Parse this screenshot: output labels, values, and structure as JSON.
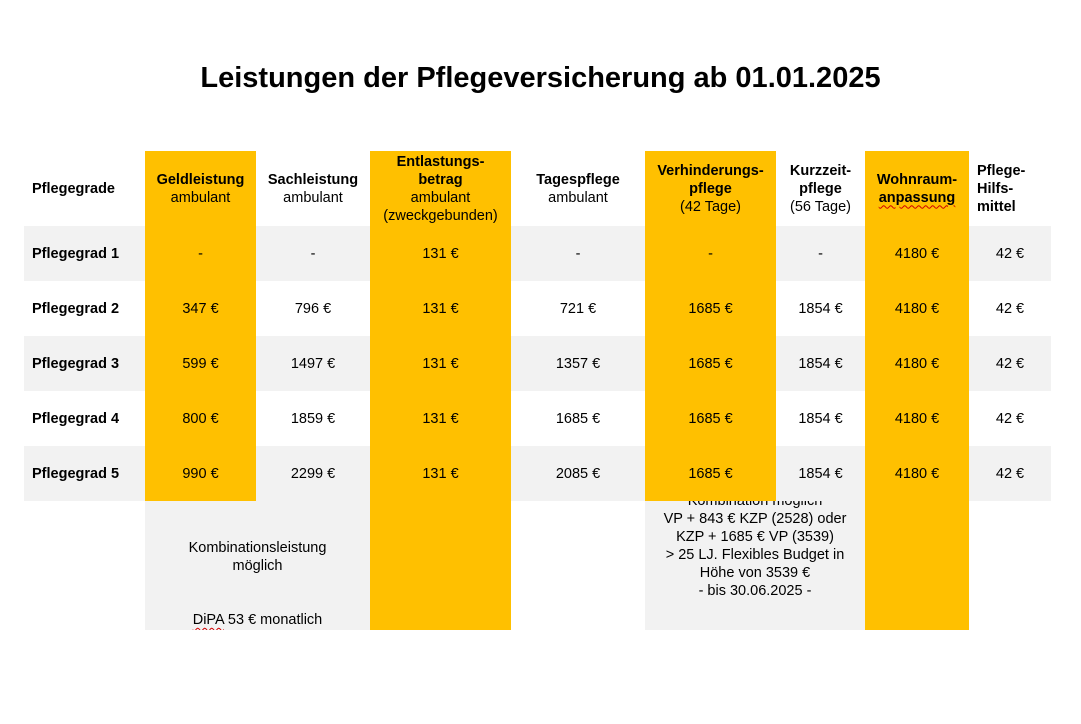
{
  "title": "Leistungen der Pflegeversicherung ab 01.01.2025",
  "headers": {
    "grade": "Pflegegrade",
    "geld": {
      "bold": "Geldleistung",
      "sub": "ambulant"
    },
    "sach": {
      "bold": "Sachleistung",
      "sub": "ambulant"
    },
    "entlastung": {
      "bold1": "Entlastungs-",
      "bold2": "betrag",
      "sub1": "ambulant",
      "sub2": "(zweckgebunden)"
    },
    "tages": {
      "bold": "Tagespflege",
      "sub": "ambulant"
    },
    "verhinderung": {
      "bold1": "Verhinderungs-",
      "bold2": "pflege",
      "sub": "(42 Tage)"
    },
    "kurzzeit": {
      "bold1": "Kurzzeit-",
      "bold2": "pflege",
      "sub": "(56 Tage)"
    },
    "wohnraum": {
      "bold1": "Wohnraum-",
      "bold2": "anpassung"
    },
    "hilfsmittel": {
      "bold1": "Pflege-",
      "bold2": "Hilfs-",
      "bold3": "mittel"
    }
  },
  "rows": [
    {
      "grade": "Pflegegrad 1",
      "geld": "-",
      "sach": "-",
      "entlastung": "131 €",
      "tages": "-",
      "verhinderung": "-",
      "kurzzeit": "-",
      "wohnraum": "4180 €",
      "hilfsmittel": "42 €"
    },
    {
      "grade": "Pflegegrad 2",
      "geld": "347 €",
      "sach": "796 €",
      "entlastung": "131 €",
      "tages": "721 €",
      "verhinderung": "1685 €",
      "kurzzeit": "1854 €",
      "wohnraum": "4180 €",
      "hilfsmittel": "42 €"
    },
    {
      "grade": "Pflegegrad 3",
      "geld": "599 €",
      "sach": "1497 €",
      "entlastung": "131 €",
      "tages": "1357 €",
      "verhinderung": "1685 €",
      "kurzzeit": "1854 €",
      "wohnraum": "4180 €",
      "hilfsmittel": "42 €"
    },
    {
      "grade": "Pflegegrad 4",
      "geld": "800 €",
      "sach": "1859 €",
      "entlastung": "131 €",
      "tages": "1685 €",
      "verhinderung": "1685 €",
      "kurzzeit": "1854 €",
      "wohnraum": "4180 €",
      "hilfsmittel": "42 €"
    },
    {
      "grade": "Pflegegrad 5",
      "geld": "990 €",
      "sach": "2299 €",
      "entlastung": "131 €",
      "tages": "2085 €",
      "verhinderung": "1685 €",
      "kurzzeit": "1854 €",
      "wohnraum": "4180 €",
      "hilfsmittel": "42 €"
    }
  ],
  "footer": {
    "combo_left_1": "Kombinationsleistung",
    "combo_left_2": "möglich",
    "dipa_prefix": "DiPA",
    "dipa_rest": " 53 € monatlich",
    "combo_right": [
      "Kombination möglich",
      "VP + 843 € KZP (2528) oder",
      "KZP + 1685 € VP (3539)",
      "> 25 LJ. Flexibles Budget in",
      "Höhe von 3539 €",
      "- bis 30.06.2025 -"
    ]
  },
  "colors": {
    "highlight": "#ffc000",
    "stripe": "#f2f2f2",
    "spellcheck_underline": "#d00000"
  }
}
